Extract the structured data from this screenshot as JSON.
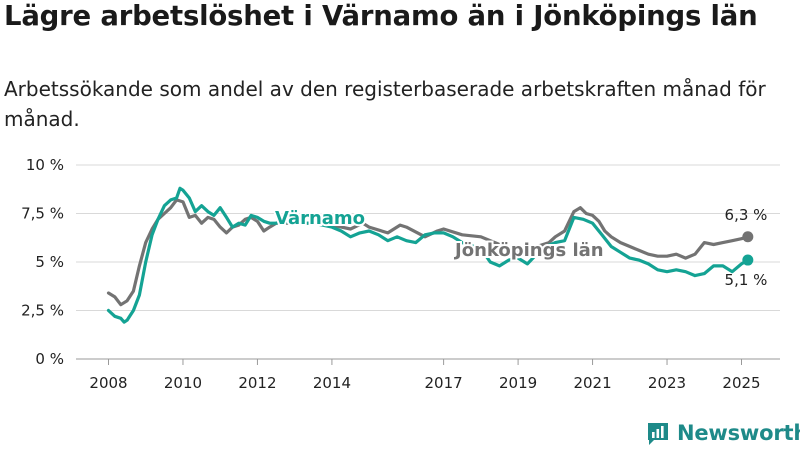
{
  "title": "Lägre arbetslöshet i Värnamo än i Jönköpings län",
  "subtitle": "Arbetssökande som andel av den registerbaserade arbetskraften månad för månad.",
  "brand": {
    "name": "Newsworthy",
    "icon": "newsworthy-logo-icon"
  },
  "colors": {
    "varnamo": "#14a394",
    "lan": "#737373",
    "grid": "#d9d9d9",
    "brand": "#1e8a89"
  },
  "chart_data": {
    "type": "line",
    "title": "Lägre arbetslöshet i Värnamo än i Jönköpings län",
    "subtitle": "Arbetssökande som andel av den registerbaserade arbetskraften månad för månad.",
    "xlabel": "",
    "ylabel": "",
    "xlim": [
      2008.0,
      2025.75
    ],
    "ylim": [
      0,
      10
    ],
    "grid": true,
    "x_ticks": [
      2008,
      2010,
      2012,
      2014,
      2017,
      2019,
      2021,
      2023,
      2025
    ],
    "x_tick_labels": [
      "2008",
      "2010",
      "2012",
      "2014",
      "2017",
      "2019",
      "2021",
      "2023",
      "2025"
    ],
    "y_ticks": [
      0,
      2.5,
      5,
      7.5,
      10
    ],
    "y_tick_labels": [
      "0 %",
      "2,5 %",
      "5 %",
      "7,5 %",
      "10 %"
    ],
    "end_labels": [
      "6,3 %",
      "5,1 %"
    ],
    "series": [
      {
        "name": "Jönköpings län",
        "x": [
          2008.0,
          2008.17,
          2008.33,
          2008.5,
          2008.67,
          2008.83,
          2009.0,
          2009.17,
          2009.33,
          2009.5,
          2009.67,
          2009.83,
          2010.0,
          2010.17,
          2010.33,
          2010.5,
          2010.67,
          2010.83,
          2011.0,
          2011.17,
          2011.33,
          2011.5,
          2011.67,
          2011.83,
          2012.0,
          2012.17,
          2012.33,
          2012.5,
          2012.67,
          2013.0,
          2013.5,
          2014.0,
          2014.5,
          2014.83,
          2015.0,
          2015.5,
          2015.83,
          2016.0,
          2016.5,
          2016.83,
          2017.0,
          2017.5,
          2018.0,
          2018.5,
          2019.0,
          2019.5,
          2019.83,
          2020.0,
          2020.25,
          2020.5,
          2020.67,
          2020.83,
          2021.0,
          2021.17,
          2021.33,
          2021.5,
          2021.75,
          2022.0,
          2022.25,
          2022.5,
          2022.75,
          2023.0,
          2023.25,
          2023.5,
          2023.75,
          2024.0,
          2024.25,
          2024.5,
          2024.75,
          2025.0,
          2025.17
        ],
        "values": [
          3.4,
          3.2,
          2.8,
          3.0,
          3.5,
          4.8,
          6.0,
          6.7,
          7.2,
          7.5,
          7.8,
          8.2,
          8.1,
          7.3,
          7.4,
          7.0,
          7.3,
          7.2,
          6.8,
          6.5,
          6.8,
          6.9,
          7.2,
          7.3,
          7.1,
          6.6,
          6.8,
          7.0,
          7.0,
          7.0,
          7.0,
          6.9,
          6.7,
          7.0,
          6.8,
          6.5,
          6.9,
          6.8,
          6.3,
          6.6,
          6.7,
          6.4,
          6.3,
          5.9,
          5.5,
          5.8,
          6.0,
          6.3,
          6.6,
          7.6,
          7.8,
          7.5,
          7.4,
          7.1,
          6.6,
          6.3,
          6.0,
          5.8,
          5.6,
          5.4,
          5.3,
          5.3,
          5.4,
          5.2,
          5.4,
          6.0,
          5.9,
          6.0,
          6.1,
          6.2,
          6.3
        ]
      },
      {
        "name": "Värnamo",
        "x": [
          2008.0,
          2008.17,
          2008.33,
          2008.42,
          2008.5,
          2008.67,
          2008.83,
          2009.0,
          2009.17,
          2009.33,
          2009.5,
          2009.67,
          2009.83,
          2009.92,
          2010.0,
          2010.17,
          2010.33,
          2010.5,
          2010.67,
          2010.83,
          2011.0,
          2011.17,
          2011.33,
          2011.5,
          2011.67,
          2011.83,
          2012.0,
          2012.17,
          2012.33,
          2012.5,
          2012.67,
          2013.0,
          2013.5,
          2014.0,
          2014.25,
          2014.5,
          2014.75,
          2015.0,
          2015.25,
          2015.5,
          2015.75,
          2016.0,
          2016.25,
          2016.5,
          2016.75,
          2017.0,
          2017.25,
          2017.5,
          2018.0,
          2018.25,
          2018.5,
          2018.75,
          2019.0,
          2019.25,
          2019.5,
          2019.75,
          2020.0,
          2020.25,
          2020.5,
          2020.75,
          2021.0,
          2021.25,
          2021.5,
          2021.75,
          2022.0,
          2022.25,
          2022.5,
          2022.75,
          2023.0,
          2023.25,
          2023.5,
          2023.75,
          2024.0,
          2024.25,
          2024.5,
          2024.75,
          2025.0,
          2025.17
        ],
        "values": [
          2.5,
          2.2,
          2.1,
          1.9,
          2.0,
          2.5,
          3.3,
          5.0,
          6.4,
          7.2,
          7.9,
          8.2,
          8.3,
          8.8,
          8.7,
          8.3,
          7.6,
          7.9,
          7.6,
          7.4,
          7.8,
          7.3,
          6.8,
          7.0,
          6.9,
          7.4,
          7.3,
          7.1,
          7.0,
          7.0,
          7.1,
          7.0,
          7.0,
          6.8,
          6.6,
          6.3,
          6.5,
          6.6,
          6.4,
          6.1,
          6.3,
          6.1,
          6.0,
          6.4,
          6.5,
          6.5,
          6.3,
          6.0,
          5.7,
          5.0,
          4.8,
          5.1,
          5.2,
          4.9,
          5.4,
          5.8,
          6.0,
          6.1,
          7.3,
          7.2,
          7.0,
          6.4,
          5.8,
          5.5,
          5.2,
          5.1,
          4.9,
          4.6,
          4.5,
          4.6,
          4.5,
          4.3,
          4.4,
          4.8,
          4.8,
          4.5,
          4.9,
          5.1
        ]
      }
    ]
  }
}
